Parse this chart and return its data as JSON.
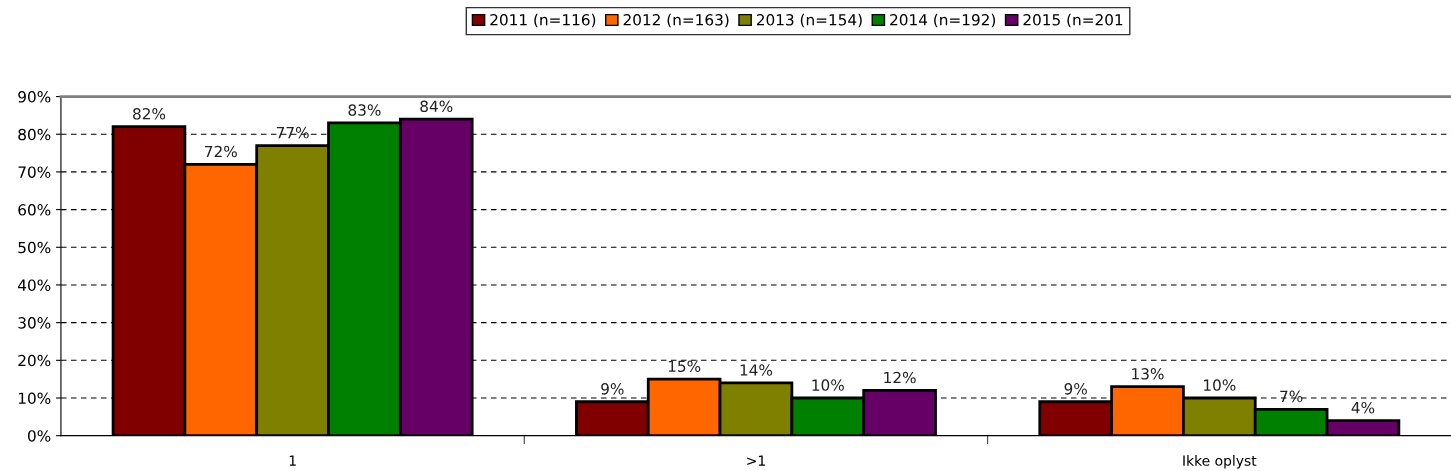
{
  "chart_data": {
    "type": "bar",
    "categories": [
      "1",
      ">1",
      "Ikke oplyst"
    ],
    "series": [
      {
        "name": "2011 (n=116)",
        "color": "#800000",
        "values": [
          82,
          9,
          9
        ],
        "value_labels": [
          "82%",
          "9%",
          "9%"
        ]
      },
      {
        "name": "2012 (n=163)",
        "color": "#ff6600",
        "values": [
          72,
          15,
          13
        ],
        "value_labels": [
          "72%",
          "15%",
          "13%"
        ]
      },
      {
        "name": "2013 (n=154)",
        "color": "#808000",
        "values": [
          77,
          14,
          10
        ],
        "value_labels": [
          "77%",
          "14%",
          "10%"
        ]
      },
      {
        "name": "2014 (n=192)",
        "color": "#008000",
        "values": [
          83,
          10,
          7
        ],
        "value_labels": [
          "83%",
          "10%",
          "7%"
        ]
      },
      {
        "name": "2015 (n=201",
        "color": "#660066",
        "values": [
          84,
          12,
          4
        ],
        "value_labels": [
          "84%",
          "12%",
          "4%"
        ]
      }
    ],
    "ylim": [
      0,
      90
    ],
    "yticks": [
      {
        "value": 0,
        "label": "0%"
      },
      {
        "value": 10,
        "label": "10%"
      },
      {
        "value": 20,
        "label": "20%"
      },
      {
        "value": 30,
        "label": "30%"
      },
      {
        "value": 40,
        "label": "40%"
      },
      {
        "value": 50,
        "label": "50%"
      },
      {
        "value": 60,
        "label": "60%"
      },
      {
        "value": 70,
        "label": "70%"
      },
      {
        "value": 80,
        "label": "80%"
      },
      {
        "value": 90,
        "label": "90%"
      }
    ],
    "grid": "y",
    "legend": "top"
  }
}
